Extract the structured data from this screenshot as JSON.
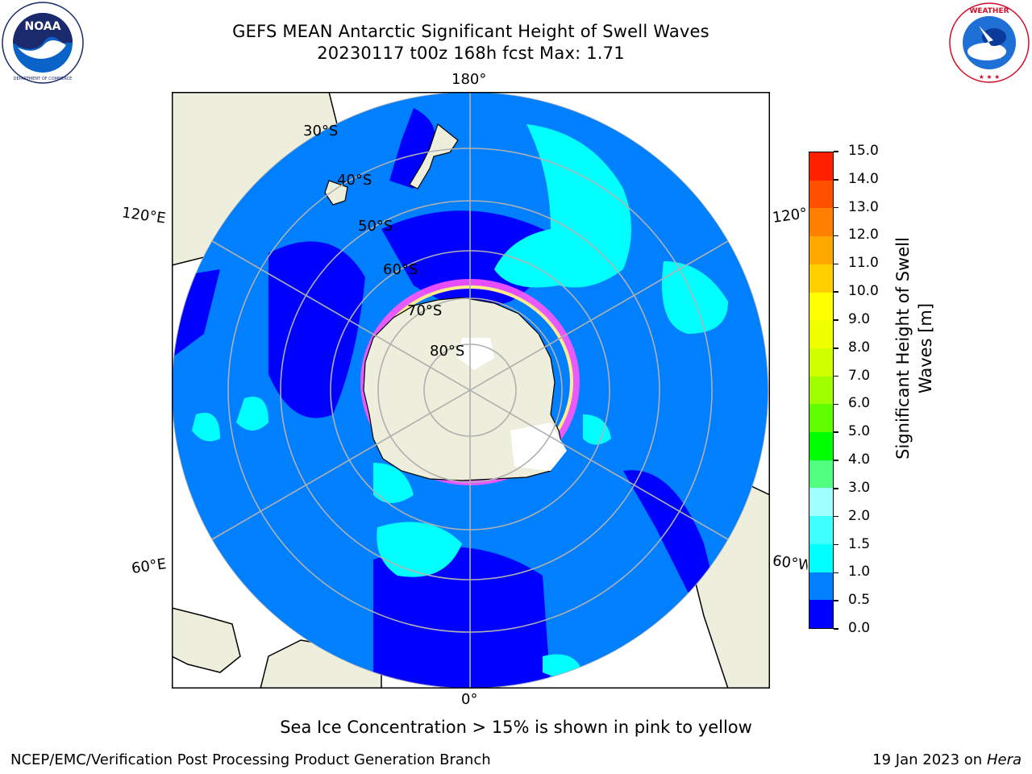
{
  "header": {
    "title_line1": "GEFS MEAN Antarctic Significant Height of Swell Waves",
    "title_line2": "20230117 t00z 168h fcst   Max: 1.71"
  },
  "logos": {
    "noaa": {
      "text": "NOAA",
      "ring_text": "NATIONAL OCEANIC AND ATMOSPHERIC ADMINISTRATION · U.S. DEPARTMENT OF COMMERCE"
    },
    "nws": {
      "ring_text": "NATIONAL WEATHER SERVICE"
    }
  },
  "map": {
    "projection": "south-polar-stereographic",
    "longitude_labels": {
      "top": "180°",
      "bottom": "0°",
      "left_upper": "120°E",
      "left_lower": "60°E",
      "right_upper": "120°W",
      "right_lower": "60°W"
    },
    "latitude_labels": [
      "30°S",
      "40°S",
      "50°S",
      "60°S",
      "70°S",
      "80°S"
    ],
    "colors": {
      "ocean_low": "#0000ff",
      "ocean_mid": "#0080ff",
      "swell_cyan": "#00ffff",
      "land": "#eeeedc",
      "ice_edge": "#ff44ff",
      "gridline": "#b0b0b0"
    }
  },
  "colorbar": {
    "label": "Significant Height of Swell Waves [m]",
    "ticks": [
      "0.0",
      "0.5",
      "1.0",
      "1.5",
      "2.0",
      "3.0",
      "4.0",
      "5.0",
      "6.0",
      "7.0",
      "8.0",
      "9.0",
      "10.0",
      "11.0",
      "12.0",
      "13.0",
      "14.0",
      "15.0"
    ],
    "colors": [
      "#0000ff",
      "#0080ff",
      "#00ffff",
      "#40ffff",
      "#a0ffff",
      "#50ff80",
      "#00ff00",
      "#60ff00",
      "#a0ff00",
      "#d0ff00",
      "#eeff00",
      "#ffff00",
      "#ffd000",
      "#ffa800",
      "#ff8000",
      "#ff5000",
      "#ff2000",
      "#ff0000"
    ]
  },
  "notes": {
    "sea_ice": "Sea Ice Concentration > 15% is shown in pink to yellow"
  },
  "footer": {
    "left": "NCEP/EMC/Verification Post Processing Product Generation Branch",
    "right_prefix": "19 Jan 2023 on ",
    "right_host": "Hera"
  }
}
